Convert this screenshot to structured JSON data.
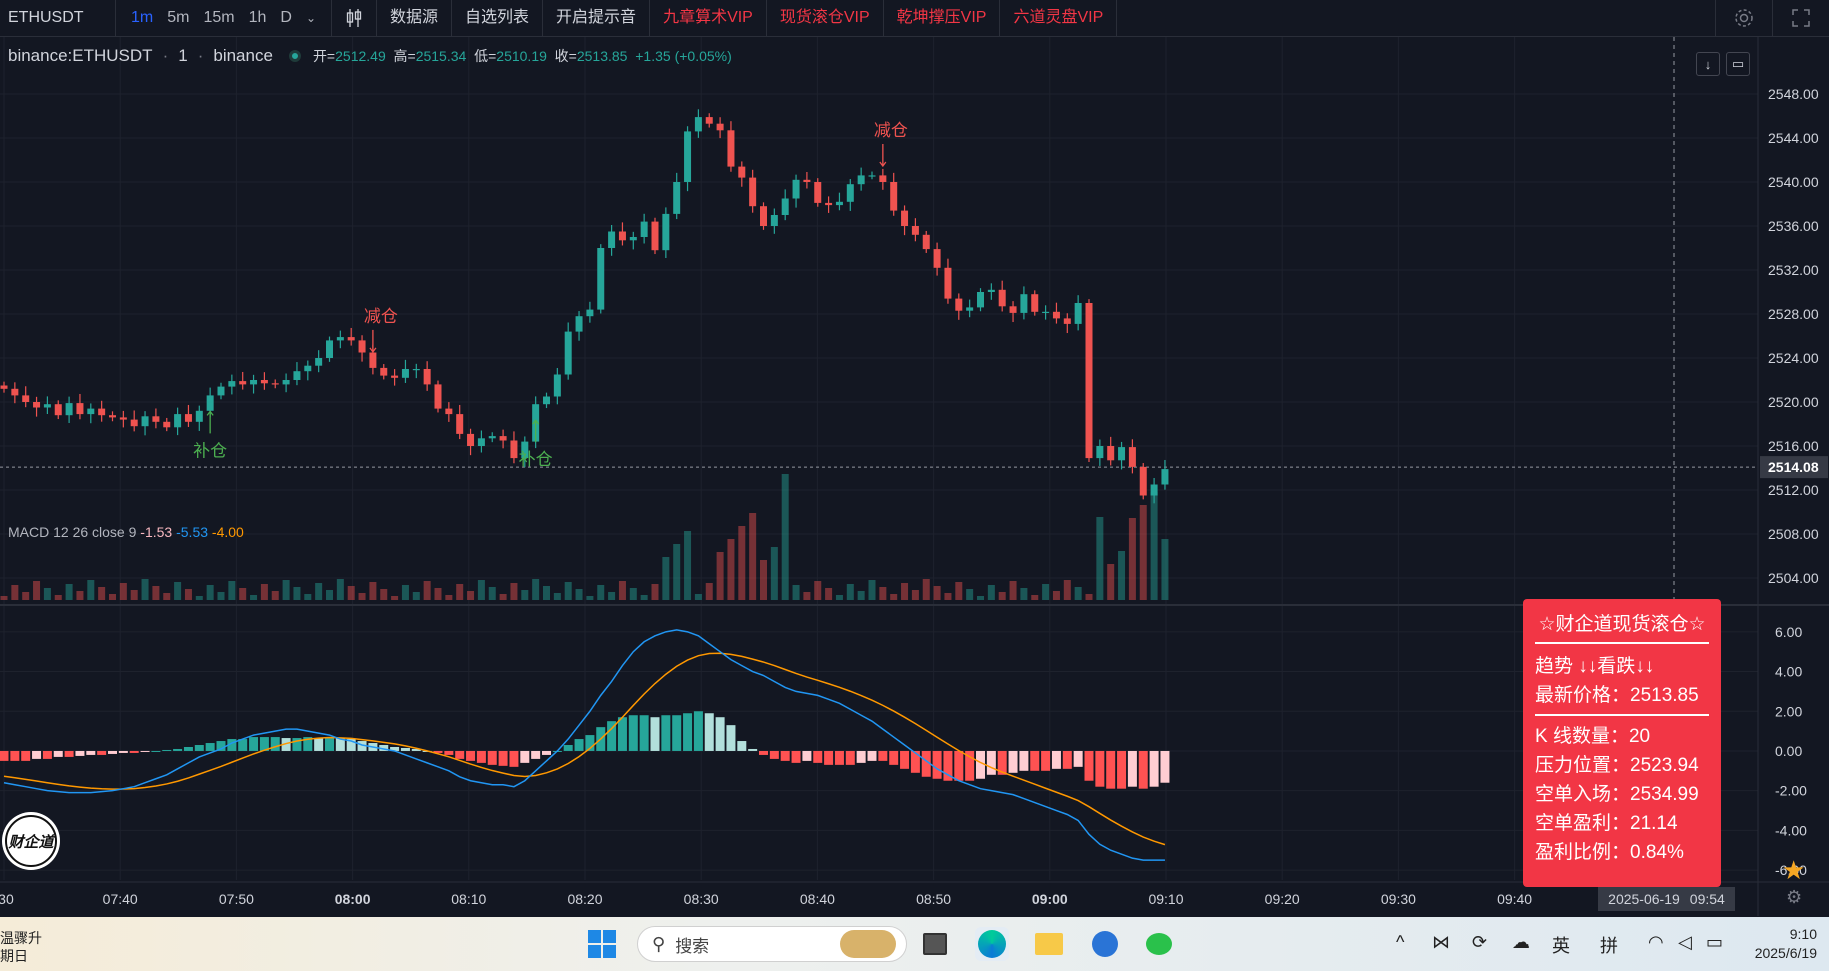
{
  "toolbar": {
    "symbol": "ETHUSDT",
    "intervals": [
      "1m",
      "5m",
      "15m",
      "1h",
      "D"
    ],
    "active_interval": "1m",
    "buttons": [
      {
        "label": "数据源",
        "vip": false
      },
      {
        "label": "自选列表",
        "vip": false
      },
      {
        "label": "开启提示音",
        "vip": false
      },
      {
        "label": "九章算术VIP",
        "vip": true
      },
      {
        "label": "现货滚仓VIP",
        "vip": true
      },
      {
        "label": "乾坤撑压VIP",
        "vip": true
      },
      {
        "label": "六道灵盘VIP",
        "vip": true
      }
    ]
  },
  "legend": {
    "symbol": "binance:ETHUSDT",
    "interval": "1",
    "exchange": "binance",
    "open_label": "开=",
    "open": "2512.49",
    "high_label": "高=",
    "high": "2515.34",
    "low_label": "低=",
    "low": "2510.19",
    "close_label": "收=",
    "close": "2513.85",
    "change": "+1.35 (+0.05%)"
  },
  "macd_legend": {
    "label": "MACD 12 26 close 9",
    "v1": "-1.53",
    "v2": "-5.53",
    "v3": "-4.00"
  },
  "info_box": {
    "title": "☆财企道现货滚仓☆",
    "trend": "趋势 ↓↓看跌↓↓",
    "latest_price": "最新价格：2513.85",
    "k_count": "K 线数量：20",
    "pressure": "压力位置：2523.94",
    "short_entry": "空单入场：2534.99",
    "short_profit": "空单盈利：21.14",
    "profit_ratio": "盈利比例：0.84%"
  },
  "crosshair_date": "2025-06-19",
  "crosshair_time": "09:54",
  "colors": {
    "up": "#26a69a",
    "down": "#ef5350",
    "bg": "#131722",
    "grid": "#1e222d",
    "vip": "#f23645"
  },
  "chart_data": {
    "type": "candlestick",
    "price_axis": {
      "min": 2502,
      "max": 2550,
      "ticks": [
        "2548.00",
        "2544.00",
        "2540.00",
        "2536.00",
        "2532.00",
        "2528.00",
        "2524.00",
        "2520.00",
        "2516.00",
        "2512.00",
        "2508.00",
        "2504.00"
      ]
    },
    "current_price_label": "2514.08",
    "macd_axis": {
      "min": -6.5,
      "max": 7,
      "ticks": [
        "6.00",
        "4.00",
        "2.00",
        "0.00",
        "-2.00",
        "-4.00",
        "-6.00"
      ]
    },
    "time_labels": [
      ":30",
      "07:40",
      "07:50",
      "08:00",
      "08:10",
      "08:20",
      "08:30",
      "08:40",
      "08:50",
      "09:00",
      "09:10",
      "09:20",
      "09:30",
      "09:40"
    ],
    "bold_time_labels": [
      "08:00",
      "09:00"
    ],
    "annotations": [
      {
        "text": "补仓",
        "type": "buy",
        "candle": 19
      },
      {
        "text": "减仓",
        "type": "sell",
        "candle": 34
      },
      {
        "text": "补仓",
        "type": "buy",
        "candle": 49
      },
      {
        "text": "减仓",
        "type": "sell",
        "candle": 81
      }
    ],
    "closes": [
      2521.2,
      2520.6,
      2520.0,
      2519.5,
      2519.8,
      2518.8,
      2519.9,
      2518.9,
      2519.4,
      2518.8,
      2518.6,
      2518.4,
      2517.8,
      2518.7,
      2518.2,
      2517.7,
      2518.9,
      2518.2,
      2519.2,
      2520.6,
      2521.4,
      2521.9,
      2521.6,
      2522.0,
      2521.7,
      2521.6,
      2522.0,
      2522.8,
      2523.3,
      2524.0,
      2525.6,
      2525.9,
      2525.6,
      2524.5,
      2523.1,
      2522.4,
      2522.2,
      2523.0,
      2523.0,
      2521.6,
      2519.4,
      2518.9,
      2517.1,
      2516.0,
      2516.7,
      2516.9,
      2516.5,
      2514.9,
      2516.4,
      2519.8,
      2520.5,
      2522.5,
      2526.4,
      2527.8,
      2528.4,
      2534.0,
      2535.5,
      2534.7,
      2535.0,
      2536.4,
      2533.8,
      2537.1,
      2540.0,
      2544.6,
      2545.9,
      2545.3,
      2544.7,
      2541.4,
      2540.4,
      2537.8,
      2536.0,
      2537.0,
      2538.5,
      2540.2,
      2540.0,
      2538.1,
      2537.9,
      2538.2,
      2539.8,
      2540.6,
      2540.6,
      2540.0,
      2537.4,
      2536.0,
      2535.2,
      2533.9,
      2532.2,
      2529.4,
      2528.3,
      2528.6,
      2530.0,
      2530.2,
      2528.7,
      2528.1,
      2529.8,
      2528.2,
      2528.2,
      2527.6,
      2527.1,
      2529.0,
      2514.9,
      2516.0,
      2514.7,
      2515.9,
      2514.1,
      2511.5,
      2512.5,
      2513.9
    ],
    "macd_hist": [
      -0.5,
      -0.5,
      -0.5,
      -0.4,
      -0.4,
      -0.3,
      -0.3,
      -0.25,
      -0.2,
      -0.2,
      -0.15,
      -0.1,
      -0.1,
      -0.05,
      0,
      0.05,
      0.1,
      0.2,
      0.3,
      0.4,
      0.5,
      0.6,
      0.6,
      0.7,
      0.7,
      0.7,
      0.65,
      0.65,
      0.7,
      0.65,
      0.7,
      0.65,
      0.6,
      0.5,
      0.4,
      0.3,
      0.2,
      0.15,
      0.1,
      0,
      -0.1,
      -0.2,
      -0.4,
      -0.5,
      -0.6,
      -0.7,
      -0.75,
      -0.8,
      -0.6,
      -0.4,
      -0.2,
      0,
      0.3,
      0.6,
      0.8,
      1.2,
      1.5,
      1.7,
      1.8,
      1.8,
      1.7,
      1.8,
      1.8,
      1.9,
      2.0,
      1.9,
      1.7,
      1.3,
      0.5,
      0.1,
      -0.2,
      -0.4,
      -0.5,
      -0.6,
      -0.5,
      -0.6,
      -0.7,
      -0.7,
      -0.7,
      -0.6,
      -0.5,
      -0.5,
      -0.7,
      -0.9,
      -1.1,
      -1.3,
      -1.4,
      -1.5,
      -1.5,
      -1.5,
      -1.4,
      -1.2,
      -1.2,
      -1.1,
      -1.0,
      -1.0,
      -1.0,
      -0.9,
      -0.9,
      -0.8,
      -1.5,
      -1.8,
      -1.9,
      -1.9,
      -1.8,
      -1.9,
      -1.8,
      -1.6
    ]
  }
}
